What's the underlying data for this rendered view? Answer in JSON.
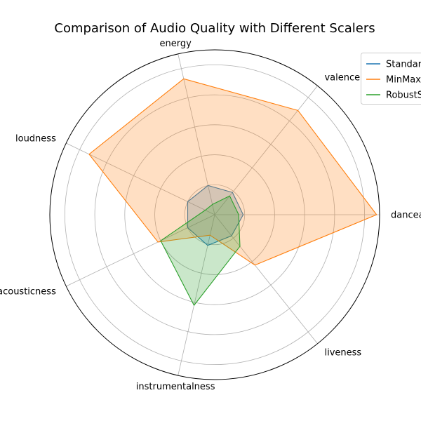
{
  "chart_data": {
    "type": "radar",
    "title": "Comparison of Audio Quality with Different Scalers",
    "axes": [
      "danceability",
      "valence",
      "energy",
      "loudness",
      "acousticness",
      "instrumentalness",
      "liveness"
    ],
    "rmax": 1.1,
    "grid": true,
    "legend_position": "top-right",
    "series": [
      {
        "name": "StandardScaler",
        "color": "#1f77b4",
        "values": [
          0.19,
          0.19,
          0.2,
          0.2,
          0.2,
          0.21,
          0.18
        ]
      },
      {
        "name": "MinMaxScaler",
        "color": "#ff7f0e",
        "values": [
          1.08,
          0.89,
          0.93,
          0.93,
          0.42,
          0.14,
          0.43
        ]
      },
      {
        "name": "RobustScaler",
        "color": "#2ca02c",
        "values": [
          0.16,
          0.16,
          0.07,
          0.07,
          0.4,
          0.62,
          0.27
        ]
      }
    ]
  }
}
